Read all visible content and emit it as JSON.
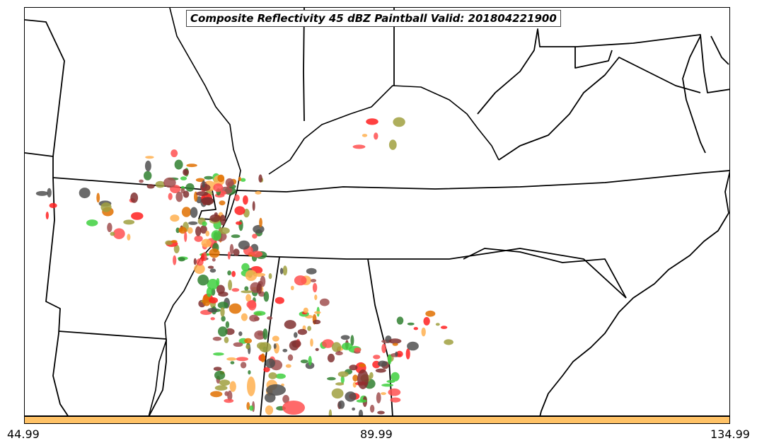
{
  "map": {
    "title": "Composite Reflectivity 45 dBZ Paintball Valid: 201804221900",
    "boundary_color": "#000000",
    "background_color": "#ffffff"
  },
  "paintball_colors": [
    "#ff5050",
    "#ffb050",
    "#e07000",
    "#40d040",
    "#308030",
    "#a0a040",
    "#a05050",
    "#505050",
    "#ff2020",
    "#803030"
  ],
  "colorbar": {
    "color": "#ffc266",
    "ticks": [
      "44.99",
      "89.99",
      "134.99"
    ]
  }
}
